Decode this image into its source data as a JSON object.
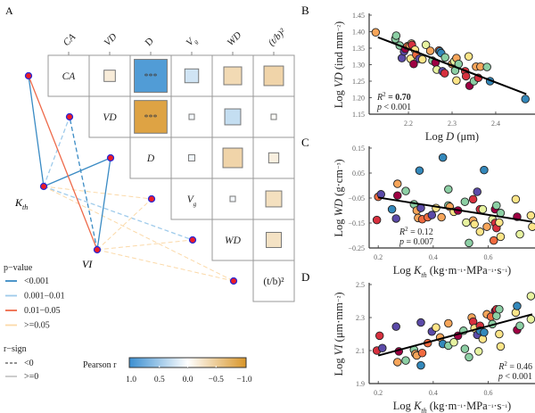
{
  "panel_labels": {
    "a": "A",
    "b": "B",
    "c": "C",
    "d": "D"
  },
  "chart_data": [
    {
      "type": "heatmap",
      "panel": "A",
      "variables": [
        "CA",
        "VD",
        "D",
        "Vg",
        "WD",
        "(t/b)²"
      ],
      "column_labels": [
        "CA",
        "VD",
        "D",
        "Vg",
        "WD",
        "(t/b)²"
      ],
      "diagonal_labels": [
        "CA",
        "VD",
        "D",
        "Vg",
        "WD",
        "(t/b)²"
      ],
      "cells": [
        {
          "row": "CA",
          "col": "VD",
          "r": -0.1,
          "sig": ""
        },
        {
          "row": "CA",
          "col": "D",
          "r": 0.85,
          "sig": "***"
        },
        {
          "row": "CA",
          "col": "Vg",
          "r": 0.15,
          "sig": ""
        },
        {
          "row": "CA",
          "col": "WD",
          "r": -0.25,
          "sig": ""
        },
        {
          "row": "CA",
          "col": "(t/b)²",
          "r": -0.3,
          "sig": ""
        },
        {
          "row": "VD",
          "col": "D",
          "r": -0.84,
          "sig": "***"
        },
        {
          "row": "VD",
          "col": "Vg",
          "r": 0.02,
          "sig": ""
        },
        {
          "row": "VD",
          "col": "WD",
          "r": 0.2,
          "sig": ""
        },
        {
          "row": "VD",
          "col": "(t/b)²",
          "r": -0.01,
          "sig": ""
        },
        {
          "row": "D",
          "col": "Vg",
          "r": 0.03,
          "sig": ""
        },
        {
          "row": "D",
          "col": "WD",
          "r": -0.3,
          "sig": ""
        },
        {
          "row": "D",
          "col": "(t/b)²",
          "r": -0.08,
          "sig": ""
        },
        {
          "row": "Vg",
          "col": "WD",
          "r": 0.02,
          "sig": ""
        },
        {
          "row": "Vg",
          "col": "(t/b)²",
          "r": -0.2,
          "sig": ""
        },
        {
          "row": "WD",
          "col": "(t/b)²",
          "r": -0.18,
          "sig": ""
        }
      ],
      "network": {
        "sources": [
          "Kth",
          "VI"
        ],
        "source_labels": {
          "Kth": "Kth",
          "VI": "VI"
        },
        "links": [
          {
            "from": "Kth",
            "to": "CA",
            "p": "<0.001",
            "sign": ">=0"
          },
          {
            "from": "Kth",
            "to": "VD",
            "p": "0.001-0.01",
            "sign": "<0"
          },
          {
            "from": "Kth",
            "to": "D",
            "p": "<0.001",
            "sign": ">=0"
          },
          {
            "from": "Kth",
            "to": "Vg",
            "p": ">=0.05",
            "sign": "<0"
          },
          {
            "from": "Kth",
            "to": "WD",
            "p": "0.001-0.01",
            "sign": "<0"
          },
          {
            "from": "Kth",
            "to": "(t/b)²",
            "p": ">=0.05",
            "sign": "<0"
          },
          {
            "from": "VI",
            "to": "CA",
            "p": "0.01-0.05",
            "sign": ">=0"
          },
          {
            "from": "VI",
            "to": "VD",
            "p": "<0.001",
            "sign": "<0"
          },
          {
            "from": "VI",
            "to": "D",
            "p": "<0.001",
            "sign": ">=0"
          },
          {
            "from": "VI",
            "to": "Vg",
            "p": ">=0.05",
            "sign": "<0"
          },
          {
            "from": "VI",
            "to": "WD",
            "p": ">=0.05",
            "sign": "<0"
          },
          {
            "from": "VI",
            "to": "(t/b)²",
            "p": ">=0.05",
            "sign": "<0"
          }
        ]
      },
      "legend": {
        "pvalue_title": "p−value",
        "pvalue_items": [
          {
            "label": "<0.001",
            "color": "#3a8bc4"
          },
          {
            "label": "0.001−0.01",
            "color": "#9fcbeb"
          },
          {
            "label": "0.01−0.05",
            "color": "#ee6a4a"
          },
          {
            "label": ">=0.05",
            "color": "#fbd9a8"
          }
        ],
        "sign_title": "r−sign",
        "sign_items": [
          {
            "label": "<0",
            "style": "dashed"
          },
          {
            "label": ">=0",
            "style": "solid"
          }
        ],
        "colorbar_title": "Pearson r",
        "colorbar_ticks": [
          "1.0",
          "0.5",
          "0.0",
          "−0.5",
          "−1.0"
        ],
        "colorbar_range": [
          1.0,
          -1.0
        ],
        "colorbar_colors": [
          "#3b8fd1",
          "#ffffff",
          "#d9962a"
        ]
      }
    },
    {
      "type": "scatter",
      "panel": "B",
      "xlabel": "Log D (μm)",
      "ylabel": "Log VD (ind mm⁻²)",
      "xlim": [
        2.11,
        2.49
      ],
      "ylim": [
        1.15,
        1.45
      ],
      "xticks": [
        "2.2",
        "2.3",
        "2.4"
      ],
      "yticks": [
        "1.15",
        "1.20",
        "1.25",
        "1.30",
        "1.35",
        "1.40",
        "1.45"
      ],
      "annotation": [
        "R² = 0.70",
        "p < 0.001"
      ],
      "fit": {
        "x": [
          2.13,
          2.47
        ],
        "y": [
          1.383,
          1.211
        ]
      },
      "points": [
        [
          2.125,
          1.398,
          0
        ],
        [
          2.17,
          1.378,
          5
        ],
        [
          2.172,
          1.388,
          5
        ],
        [
          2.18,
          1.358,
          5
        ],
        [
          2.185,
          1.32,
          7
        ],
        [
          2.19,
          1.34,
          7
        ],
        [
          2.193,
          1.348,
          8
        ],
        [
          2.198,
          1.356,
          1
        ],
        [
          2.203,
          1.358,
          0
        ],
        [
          2.207,
          1.364,
          3
        ],
        [
          2.205,
          1.318,
          3
        ],
        [
          2.208,
          1.36,
          2
        ],
        [
          2.212,
          1.302,
          8
        ],
        [
          2.215,
          1.345,
          3
        ],
        [
          2.218,
          1.33,
          1
        ],
        [
          2.225,
          1.318,
          7
        ],
        [
          2.232,
          1.316,
          3
        ],
        [
          2.24,
          1.36,
          4
        ],
        [
          2.25,
          1.342,
          0
        ],
        [
          2.255,
          1.312,
          5
        ],
        [
          2.262,
          1.306,
          8
        ],
        [
          2.265,
          1.285,
          4
        ],
        [
          2.27,
          1.343,
          1
        ],
        [
          2.272,
          1.34,
          6
        ],
        [
          2.275,
          1.335,
          6
        ],
        [
          2.278,
          1.28,
          7
        ],
        [
          2.283,
          1.274,
          2
        ],
        [
          2.284,
          1.322,
          5
        ],
        [
          2.3,
          1.302,
          0
        ],
        [
          2.305,
          1.31,
          4
        ],
        [
          2.307,
          1.282,
          5
        ],
        [
          2.31,
          1.32,
          0
        ],
        [
          2.31,
          1.252,
          3
        ],
        [
          2.315,
          1.302,
          5
        ],
        [
          2.33,
          1.28,
          2
        ],
        [
          2.332,
          1.265,
          2
        ],
        [
          2.338,
          1.325,
          3
        ],
        [
          2.34,
          1.236,
          8
        ],
        [
          2.35,
          1.25,
          5
        ],
        [
          2.355,
          1.294,
          0
        ],
        [
          2.36,
          1.26,
          2
        ],
        [
          2.365,
          1.294,
          0
        ],
        [
          2.38,
          1.293,
          5
        ],
        [
          2.387,
          1.25,
          6
        ],
        [
          2.468,
          1.196,
          6
        ]
      ]
    },
    {
      "type": "scatter",
      "panel": "C",
      "xlabel": "Log Kth (kg·m⁻¹·MPa⁻¹·s⁻¹)",
      "ylabel": "Log WD (g·cm⁻³)",
      "xlim": [
        0.167,
        0.77
      ],
      "ylim": [
        -0.25,
        0.15
      ],
      "xticks": [
        "0.2",
        "0.4",
        "0.6"
      ],
      "yticks": [
        "0.15",
        "0.05",
        "−0.05",
        "−0.15",
        "−0.25"
      ],
      "annotation": [
        "R² = 0.12",
        "p = 0.007"
      ],
      "fit": {
        "x": [
          0.2,
          0.76
        ],
        "y": [
          -0.048,
          -0.145
        ]
      },
      "points": [
        [
          0.195,
          -0.138,
          2
        ],
        [
          0.2,
          -0.045,
          1
        ],
        [
          0.21,
          -0.035,
          7
        ],
        [
          0.25,
          -0.095,
          6
        ],
        [
          0.265,
          -0.132,
          7
        ],
        [
          0.27,
          0.007,
          0
        ],
        [
          0.27,
          -0.04,
          8
        ],
        [
          0.3,
          -0.022,
          5
        ],
        [
          0.33,
          -0.075,
          5
        ],
        [
          0.34,
          -0.1,
          0
        ],
        [
          0.345,
          -0.13,
          0
        ],
        [
          0.35,
          0.06,
          6
        ],
        [
          0.355,
          -0.09,
          7
        ],
        [
          0.36,
          -0.135,
          1
        ],
        [
          0.38,
          -0.127,
          1
        ],
        [
          0.395,
          -0.118,
          7
        ],
        [
          0.41,
          -0.09,
          3
        ],
        [
          0.43,
          -0.127,
          0
        ],
        [
          0.435,
          0.112,
          6
        ],
        [
          0.455,
          -0.015,
          5
        ],
        [
          0.455,
          -0.08,
          5
        ],
        [
          0.46,
          -0.085,
          0
        ],
        [
          0.475,
          -0.105,
          3
        ],
        [
          0.49,
          -0.1,
          8
        ],
        [
          0.515,
          -0.065,
          5
        ],
        [
          0.52,
          -0.148,
          4
        ],
        [
          0.53,
          -0.23,
          5
        ],
        [
          0.545,
          -0.055,
          2
        ],
        [
          0.545,
          -0.14,
          0
        ],
        [
          0.55,
          -0.155,
          3
        ],
        [
          0.56,
          -0.025,
          7
        ],
        [
          0.57,
          -0.185,
          3
        ],
        [
          0.57,
          -0.095,
          2
        ],
        [
          0.58,
          -0.095,
          4
        ],
        [
          0.585,
          0.062,
          6
        ],
        [
          0.595,
          -0.165,
          0
        ],
        [
          0.615,
          -0.135,
          4
        ],
        [
          0.62,
          -0.22,
          1
        ],
        [
          0.625,
          -0.095,
          8
        ],
        [
          0.625,
          -0.15,
          2
        ],
        [
          0.63,
          -0.08,
          5
        ],
        [
          0.63,
          -0.17,
          2
        ],
        [
          0.64,
          -0.148,
          3
        ],
        [
          0.645,
          -0.11,
          5
        ],
        [
          0.645,
          -0.205,
          3
        ],
        [
          0.7,
          -0.055,
          3
        ],
        [
          0.705,
          -0.125,
          8
        ],
        [
          0.715,
          -0.195,
          4
        ],
        [
          0.755,
          -0.12,
          3
        ],
        [
          0.76,
          -0.165,
          3
        ]
      ]
    },
    {
      "type": "scatter",
      "panel": "D",
      "xlabel": "Log Kth (kg·m⁻¹·MPa⁻¹·s⁻¹)",
      "ylabel": "Log VI (μm·mm⁻²)",
      "xlim": [
        0.167,
        0.77
      ],
      "ylim": [
        1.9,
        2.5
      ],
      "xticks": [
        "0.2",
        "0.4",
        "0.6"
      ],
      "yticks": [
        "2.5",
        "2.3",
        "2.1",
        "1.9"
      ],
      "annotation": [
        "R² = 0.46",
        "p < 0.001"
      ],
      "fit": {
        "x": [
          0.2,
          0.76
        ],
        "y": [
          2.07,
          2.32
        ]
      },
      "points": [
        [
          0.195,
          2.1,
          2
        ],
        [
          0.205,
          2.19,
          2
        ],
        [
          0.215,
          2.115,
          7
        ],
        [
          0.265,
          2.245,
          7
        ],
        [
          0.27,
          2.03,
          0
        ],
        [
          0.275,
          2.095,
          8
        ],
        [
          0.3,
          2.04,
          5
        ],
        [
          0.33,
          2.105,
          5
        ],
        [
          0.335,
          2.08,
          0
        ],
        [
          0.34,
          2.07,
          0
        ],
        [
          0.355,
          2.27,
          7
        ],
        [
          0.355,
          2.01,
          6
        ],
        [
          0.36,
          2.085,
          1
        ],
        [
          0.38,
          2.145,
          1
        ],
        [
          0.395,
          2.215,
          7
        ],
        [
          0.41,
          2.24,
          3
        ],
        [
          0.425,
          2.18,
          0
        ],
        [
          0.435,
          2.14,
          6
        ],
        [
          0.455,
          2.265,
          0
        ],
        [
          0.455,
          2.13,
          5
        ],
        [
          0.475,
          2.15,
          4
        ],
        [
          0.49,
          2.19,
          8
        ],
        [
          0.51,
          2.22,
          5
        ],
        [
          0.515,
          2.11,
          5
        ],
        [
          0.53,
          2.06,
          5
        ],
        [
          0.54,
          2.3,
          0
        ],
        [
          0.545,
          2.275,
          2
        ],
        [
          0.55,
          2.235,
          3
        ],
        [
          0.56,
          2.195,
          7
        ],
        [
          0.565,
          2.095,
          4
        ],
        [
          0.57,
          2.25,
          2
        ],
        [
          0.57,
          2.22,
          6
        ],
        [
          0.58,
          2.17,
          3
        ],
        [
          0.585,
          2.21,
          6
        ],
        [
          0.595,
          2.32,
          0
        ],
        [
          0.61,
          2.305,
          1
        ],
        [
          0.615,
          2.26,
          5
        ],
        [
          0.625,
          2.34,
          8
        ],
        [
          0.63,
          2.35,
          2
        ],
        [
          0.63,
          2.31,
          5
        ],
        [
          0.64,
          2.35,
          5
        ],
        [
          0.64,
          2.2,
          3
        ],
        [
          0.645,
          2.125,
          3
        ],
        [
          0.7,
          2.33,
          3
        ],
        [
          0.705,
          2.37,
          6
        ],
        [
          0.705,
          2.225,
          8
        ],
        [
          0.715,
          2.25,
          5
        ],
        [
          0.755,
          2.43,
          4
        ],
        [
          0.755,
          2.29,
          4
        ]
      ]
    }
  ],
  "point_palette": [
    "#f6a55a",
    "#f16a3f",
    "#d7303e",
    "#fde588",
    "#e7f3a0",
    "#8ccfa4",
    "#3388bb",
    "#5b4aa8",
    "#9e0142"
  ]
}
